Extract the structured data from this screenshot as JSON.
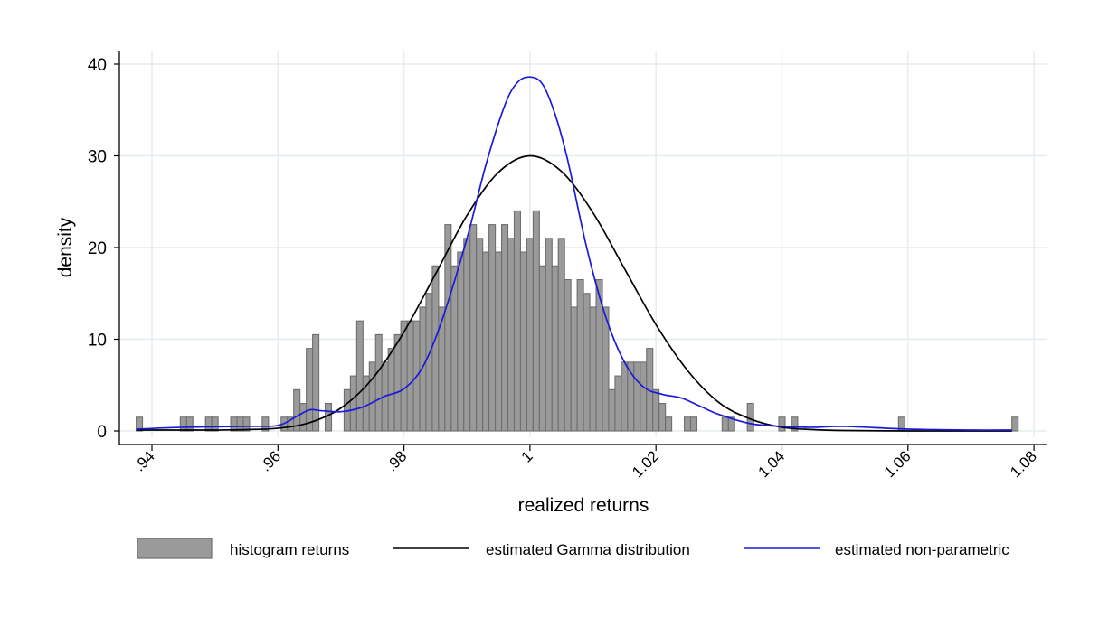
{
  "chart_data": {
    "type": "histogram",
    "xlabel": "realized returns",
    "ylabel": "density",
    "xlim": [
      0.935,
      1.08
    ],
    "ylim": [
      0,
      40
    ],
    "x_ticks": [
      0.94,
      0.96,
      0.98,
      1.0,
      1.02,
      1.04,
      1.06,
      1.08
    ],
    "x_tick_labels": [
      ".94",
      ".96",
      ".98",
      "1",
      "1.02",
      "1.04",
      "1.06",
      "1.08"
    ],
    "y_ticks": [
      0,
      10,
      20,
      30,
      40
    ],
    "y_tick_labels": [
      "0",
      "10",
      "20",
      "30",
      "40"
    ],
    "grid": true,
    "legend_position": "bottom",
    "colors": {
      "histogram_fill": "#9a9a9a",
      "histogram_edge": "#6e6e6e",
      "gamma_line": "#000000",
      "nonparametric_line": "#1a1adb",
      "grid": "#e6edf0"
    },
    "histogram": {
      "name": "histogram returns",
      "bin_width": 0.001,
      "bins": [
        [
          0.938,
          1.5
        ],
        [
          0.945,
          1.5
        ],
        [
          0.946,
          1.5
        ],
        [
          0.949,
          1.5
        ],
        [
          0.95,
          1.5
        ],
        [
          0.953,
          1.5
        ],
        [
          0.954,
          1.5
        ],
        [
          0.955,
          1.5
        ],
        [
          0.958,
          1.5
        ],
        [
          0.961,
          1.5
        ],
        [
          0.962,
          1.5
        ],
        [
          0.963,
          4.5
        ],
        [
          0.964,
          3
        ],
        [
          0.965,
          9
        ],
        [
          0.966,
          10.5
        ],
        [
          0.968,
          3
        ],
        [
          0.971,
          4.5
        ],
        [
          0.972,
          6
        ],
        [
          0.973,
          12
        ],
        [
          0.974,
          6
        ],
        [
          0.975,
          7.5
        ],
        [
          0.976,
          10.5
        ],
        [
          0.977,
          7.5
        ],
        [
          0.978,
          9
        ],
        [
          0.979,
          10.5
        ],
        [
          0.98,
          12
        ],
        [
          0.981,
          12
        ],
        [
          0.982,
          12
        ],
        [
          0.983,
          13.5
        ],
        [
          0.984,
          15
        ],
        [
          0.985,
          18
        ],
        [
          0.986,
          13.5
        ],
        [
          0.987,
          22.5
        ],
        [
          0.988,
          18
        ],
        [
          0.989,
          19.5
        ],
        [
          0.99,
          21
        ],
        [
          0.991,
          22.5
        ],
        [
          0.992,
          21
        ],
        [
          0.993,
          19.5
        ],
        [
          0.994,
          22.5
        ],
        [
          0.995,
          19.5
        ],
        [
          0.996,
          22.5
        ],
        [
          0.997,
          21
        ],
        [
          0.998,
          24
        ],
        [
          0.999,
          19.5
        ],
        [
          1.0,
          21
        ],
        [
          1.001,
          24
        ],
        [
          1.002,
          18
        ],
        [
          1.003,
          21
        ],
        [
          1.004,
          18
        ],
        [
          1.005,
          21
        ],
        [
          1.006,
          16.5
        ],
        [
          1.007,
          13.5
        ],
        [
          1.008,
          16.5
        ],
        [
          1.009,
          15
        ],
        [
          1.01,
          13.5
        ],
        [
          1.011,
          16.5
        ],
        [
          1.012,
          13.5
        ],
        [
          1.013,
          4.5
        ],
        [
          1.014,
          6
        ],
        [
          1.015,
          7.5
        ],
        [
          1.016,
          7.5
        ],
        [
          1.017,
          7.5
        ],
        [
          1.018,
          7.5
        ],
        [
          1.019,
          9
        ],
        [
          1.02,
          4.5
        ],
        [
          1.021,
          3
        ],
        [
          1.022,
          1.5
        ],
        [
          1.025,
          1.5
        ],
        [
          1.026,
          1.5
        ],
        [
          1.031,
          1.5
        ],
        [
          1.032,
          1.5
        ],
        [
          1.035,
          3
        ],
        [
          1.04,
          1.5
        ],
        [
          1.042,
          1.5
        ],
        [
          1.059,
          1.5
        ],
        [
          1.077,
          1.5
        ]
      ]
    },
    "series": [
      {
        "name": "estimated Gamma distribution",
        "x": [
          0.9375,
          0.95,
          0.955,
          0.96,
          0.965,
          0.97,
          0.975,
          0.98,
          0.985,
          0.99,
          0.995,
          1.0,
          1.005,
          1.01,
          1.015,
          1.02,
          1.025,
          1.03,
          1.035,
          1.04,
          1.045,
          1.05,
          1.06,
          1.07,
          1.0765
        ],
        "y": [
          0.1,
          0.1,
          0.15,
          0.3,
          0.9,
          2.5,
          5.7,
          10.8,
          17.1,
          23.5,
          28.2,
          30.0,
          28.3,
          23.8,
          17.7,
          11.6,
          6.6,
          3.1,
          1.3,
          0.4,
          0.15,
          0.05,
          0.0,
          0.0,
          0.0
        ]
      },
      {
        "name": "estimated non-parametric",
        "x": [
          0.9375,
          0.945,
          0.955,
          0.96,
          0.963,
          0.965,
          0.967,
          0.97,
          0.973,
          0.975,
          0.977,
          0.98,
          0.983,
          0.986,
          0.99,
          0.993,
          0.996,
          0.998,
          1.0,
          1.002,
          1.004,
          1.006,
          1.009,
          1.012,
          1.015,
          1.018,
          1.021,
          1.024,
          1.027,
          1.03,
          1.035,
          1.04,
          1.045,
          1.05,
          1.06,
          1.07,
          1.0765
        ],
        "y": [
          0.2,
          0.4,
          0.5,
          0.6,
          1.6,
          2.3,
          2.2,
          2.1,
          2.5,
          3.1,
          3.8,
          4.6,
          7.0,
          12.0,
          21.0,
          29.0,
          35.5,
          38.0,
          38.6,
          37.8,
          34.5,
          29.5,
          20.0,
          12.5,
          7.5,
          4.8,
          4.0,
          3.6,
          2.7,
          1.8,
          0.8,
          0.5,
          0.4,
          0.5,
          0.2,
          0.1,
          0.1
        ]
      }
    ],
    "legend": {
      "items": [
        "histogram returns",
        "estimated Gamma distribution",
        "estimated non-parametric"
      ]
    }
  }
}
